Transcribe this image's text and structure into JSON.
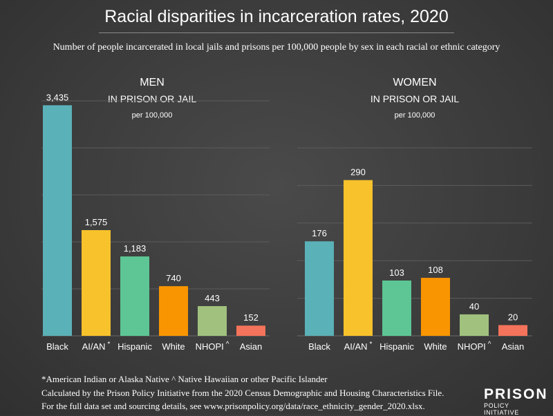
{
  "title": "Racial disparities in incarceration rates, 2020",
  "subtitle": "Number of people incarcerated in local jails and prisons per 100,000 people by sex in each racial or ethnic category",
  "colors": {
    "Black": "#5bb1b8",
    "AI/AN": "#f7c22b",
    "Hispanic": "#5dc694",
    "White": "#f99500",
    "NHOPI": "#a0c27e",
    "Asian": "#f4735b",
    "grid": "#5c5c5c"
  },
  "chart_data": [
    {
      "type": "bar",
      "heading": "MEN",
      "heading2": "IN PRISON OR JAIL",
      "heading3": "per 100,000",
      "categories": [
        "Black",
        "AI/AN",
        "Hispanic",
        "White",
        "NHOPI",
        "Asian"
      ],
      "category_marks": [
        "",
        "*",
        "",
        "",
        "^",
        ""
      ],
      "values": [
        3435,
        1575,
        1183,
        740,
        443,
        152
      ],
      "value_labels": [
        "3,435",
        "1,575",
        "1,183",
        "740",
        "443",
        "152"
      ],
      "ylim": [
        0,
        3500
      ],
      "grid": true
    },
    {
      "type": "bar",
      "heading": "WOMEN",
      "heading2": "IN PRISON OR JAIL",
      "heading3": "per 100,000",
      "categories": [
        "Black",
        "AI/AN",
        "Hispanic",
        "White",
        "NHOPI",
        "Asian"
      ],
      "category_marks": [
        "",
        "*",
        "",
        "",
        "^",
        ""
      ],
      "values": [
        176,
        290,
        103,
        108,
        40,
        20
      ],
      "value_labels": [
        "176",
        "290",
        "103",
        "108",
        "40",
        "20"
      ],
      "ylim": [
        0,
        350
      ],
      "grid": true
    }
  ],
  "footnotes": {
    "line1": "*American Indian or Alaska Native    ^ Native Hawaiian or other Pacific Islander",
    "line2": "Calculated by the Prison Policy Initiative from the 2020 Census Demographic and Housing Characteristics File.",
    "line3": "For the full data set and sourcing details, see www.prisonpolicy.org/data/race_ethnicity_gender_2020.xlsx."
  },
  "logo": {
    "line1": "PRISON",
    "line2": "POLICY INITIATIVE"
  }
}
